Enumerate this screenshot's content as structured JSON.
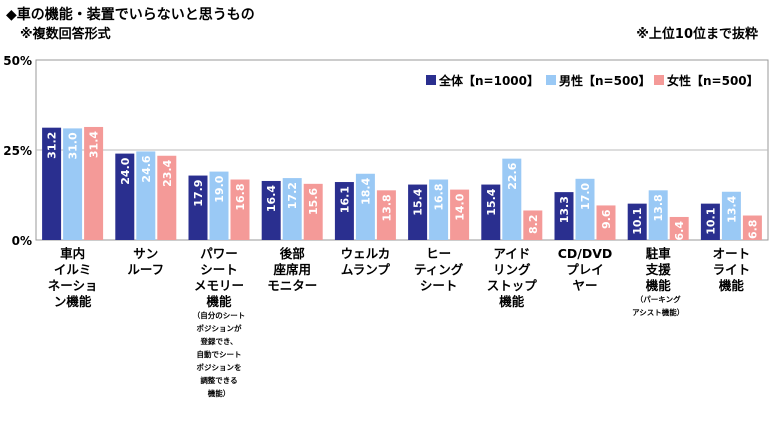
{
  "title": "◆車の機能・装置でいらないと思うもの",
  "subtitle": "※複数回答形式",
  "note": "※上位10位まで抜粋",
  "chart_data": {
    "type": "bar",
    "ylim": [
      0,
      50
    ],
    "yticks": [
      "0%",
      "25%",
      "50%"
    ],
    "ytick_values": [
      0,
      25,
      50
    ],
    "grid": true,
    "legend_position": "top-right",
    "categories": [
      {
        "lines": [
          "車内",
          "イルミ",
          "ネーショ",
          "ン機能"
        ],
        "sub": []
      },
      {
        "lines": [
          "サン",
          "ルーフ"
        ],
        "sub": []
      },
      {
        "lines": [
          "パワー",
          "シート",
          "メモリー",
          "機能"
        ],
        "sub": [
          "（自分のシート",
          "ポジションが",
          "登録でき、",
          "自動でシート",
          "ポジションを",
          "調整できる",
          "機能）"
        ]
      },
      {
        "lines": [
          "後部",
          "座席用",
          "モニター"
        ],
        "sub": []
      },
      {
        "lines": [
          "ウェルカ",
          "ムランプ"
        ],
        "sub": []
      },
      {
        "lines": [
          "ヒー",
          "ティング",
          "シート"
        ],
        "sub": []
      },
      {
        "lines": [
          "アイド",
          "リング",
          "ストップ",
          "機能"
        ],
        "sub": []
      },
      {
        "lines": [
          "CD/DVD",
          "プレイ",
          "ヤー"
        ],
        "sub": []
      },
      {
        "lines": [
          "駐車",
          "支援",
          "機能"
        ],
        "sub": [
          "（パーキング",
          "アシスト機能）"
        ]
      },
      {
        "lines": [
          "オート",
          "ライト",
          "機能"
        ],
        "sub": []
      }
    ],
    "series": [
      {
        "name": "全体【n=1000】",
        "color": "#2a2f8f",
        "values": [
          31.2,
          24.0,
          17.9,
          16.4,
          16.1,
          15.4,
          15.4,
          13.3,
          10.1,
          10.1
        ],
        "labels": [
          "31.2",
          "24.0",
          "17.9",
          "16.4",
          "16.1",
          "15.4",
          "15.4",
          "13.3",
          "10.1",
          "10.1"
        ]
      },
      {
        "name": "男性【n=500】",
        "color": "#9ac9f5",
        "values": [
          31.0,
          24.6,
          19.0,
          17.2,
          18.4,
          16.8,
          22.6,
          17.0,
          13.8,
          13.4
        ],
        "labels": [
          "31.0",
          "24.6",
          "19.0",
          "17.2",
          "18.4",
          "16.8",
          "22.6",
          "17.0",
          "13.8",
          "13.4"
        ]
      },
      {
        "name": "女性【n=500】",
        "color": "#f49a98",
        "values": [
          31.4,
          23.4,
          16.8,
          15.6,
          13.8,
          14.0,
          8.2,
          9.6,
          6.4,
          6.8
        ],
        "labels": [
          "31.4",
          "23.4",
          "16.8",
          "15.6",
          "13.8",
          "14.0",
          "8.2",
          "9.6",
          "6.4",
          "6.8"
        ]
      }
    ]
  }
}
